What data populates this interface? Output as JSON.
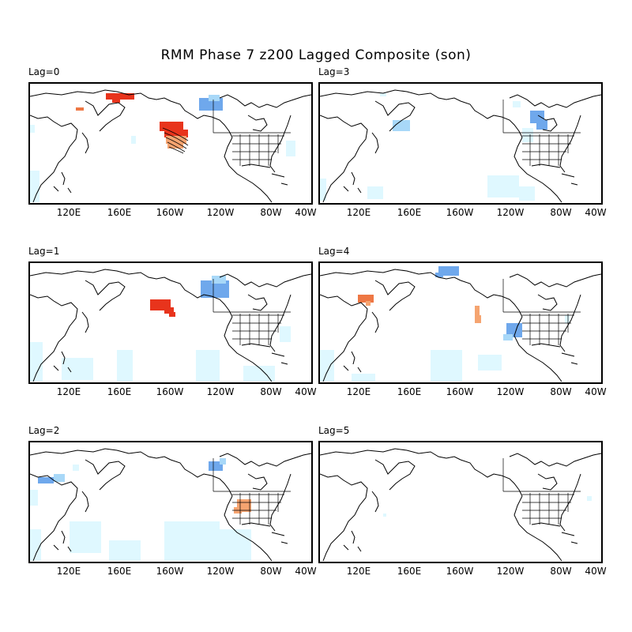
{
  "title": "RMM Phase 7 z200 Lagged Composite (son)",
  "lon_ticks": [
    "120E",
    "160E",
    "160W",
    "120W",
    "80W",
    "40W"
  ],
  "colors": {
    "light_blue": "#dff8ff",
    "mid_blue": "#a8d8f8",
    "blue": "#6fa8ec",
    "orange": "#f5a470",
    "dark_orange": "#ee7744",
    "red": "#e8341c",
    "coast": "#000000"
  },
  "panels": [
    {
      "label": "Lag=0",
      "key": "lag0"
    },
    {
      "label": "Lag=3",
      "key": "lag3"
    },
    {
      "label": "Lag=1",
      "key": "lag1"
    },
    {
      "label": "Lag=4",
      "key": "lag4"
    },
    {
      "label": "Lag=2",
      "key": "lag2"
    },
    {
      "label": "Lag=5",
      "key": "lag5"
    }
  ]
}
